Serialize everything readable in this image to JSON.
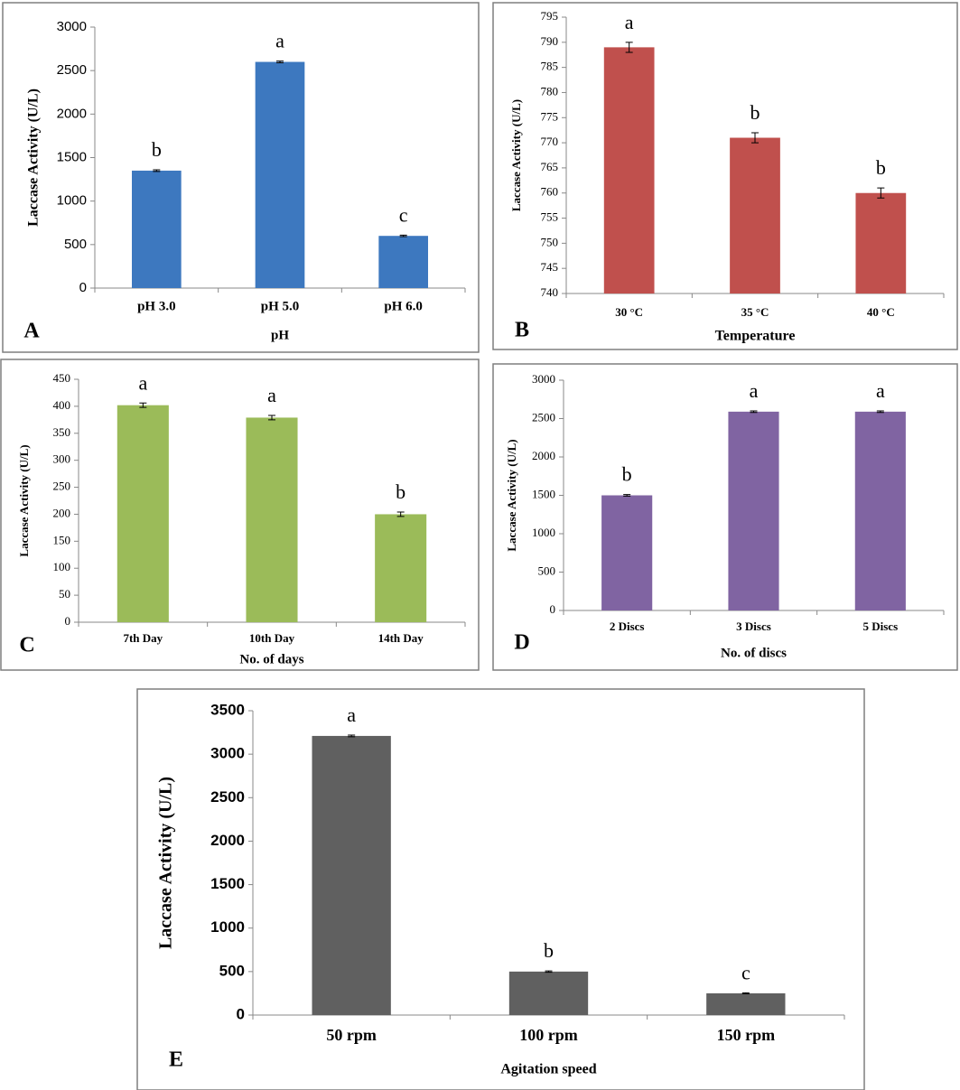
{
  "chart_data": [
    {
      "type": "bar",
      "panel_label": "A",
      "x_label": "pH",
      "y_label": "Laccase Activity (U/L)",
      "categories": [
        "pH 3.0",
        "pH 5.0",
        "pH 6.0"
      ],
      "values": [
        1350,
        2600,
        600
      ],
      "errors": [
        10,
        10,
        8
      ],
      "annotations": [
        "b",
        "a",
        "c"
      ],
      "color": "#3d78bf",
      "ylim": [
        0,
        3000
      ],
      "yticks": [
        0,
        500,
        1000,
        1500,
        2000,
        2500,
        3000
      ]
    },
    {
      "type": "bar",
      "panel_label": "B",
      "x_label": "Temperature",
      "y_label": "Laccase Activity (U/L)",
      "categories": [
        "30 °C",
        "35 °C",
        "40 °C"
      ],
      "values": [
        789,
        771,
        760
      ],
      "errors": [
        1,
        1,
        1
      ],
      "annotations": [
        "a",
        "b",
        "b"
      ],
      "color": "#c0504d",
      "ylim": [
        740,
        795
      ],
      "yticks": [
        740,
        745,
        750,
        755,
        760,
        765,
        770,
        775,
        780,
        785,
        790,
        795
      ]
    },
    {
      "type": "bar",
      "panel_label": "C",
      "x_label": "No. of days",
      "y_label": "Laccase Activity (U/L)",
      "categories": [
        "7th Day",
        "10th Day",
        "14th Day"
      ],
      "values": [
        402,
        379,
        200
      ],
      "errors": [
        4,
        4,
        4
      ],
      "annotations": [
        "a",
        "a",
        "b"
      ],
      "color": "#9bbb59",
      "ylim": [
        0,
        450
      ],
      "yticks": [
        0,
        50,
        100,
        150,
        200,
        250,
        300,
        350,
        400,
        450
      ]
    },
    {
      "type": "bar",
      "panel_label": "D",
      "x_label": "No. of discs",
      "y_label": "Laccase Activity (U/L)",
      "categories": [
        "2 Discs",
        "3 Discs",
        "5 Discs"
      ],
      "values": [
        1500,
        2590,
        2590
      ],
      "errors": [
        10,
        10,
        10
      ],
      "annotations": [
        "b",
        "a",
        "a"
      ],
      "color": "#8064a2",
      "ylim": [
        0,
        3000
      ],
      "yticks": [
        0,
        500,
        1000,
        1500,
        2000,
        2500,
        3000
      ]
    },
    {
      "type": "bar",
      "panel_label": "E",
      "x_label": "Agitation speed",
      "y_label": "Laccase Activity (U/L)",
      "categories": [
        "50 rpm",
        "100 rpm",
        "150 rpm"
      ],
      "values": [
        3210,
        500,
        250
      ],
      "errors": [
        10,
        8,
        6
      ],
      "annotations": [
        "a",
        "b",
        "c"
      ],
      "color": "#606060",
      "ylim": [
        0,
        3500
      ],
      "yticks": [
        0,
        500,
        1000,
        1500,
        2000,
        2500,
        3000,
        3500
      ]
    }
  ]
}
